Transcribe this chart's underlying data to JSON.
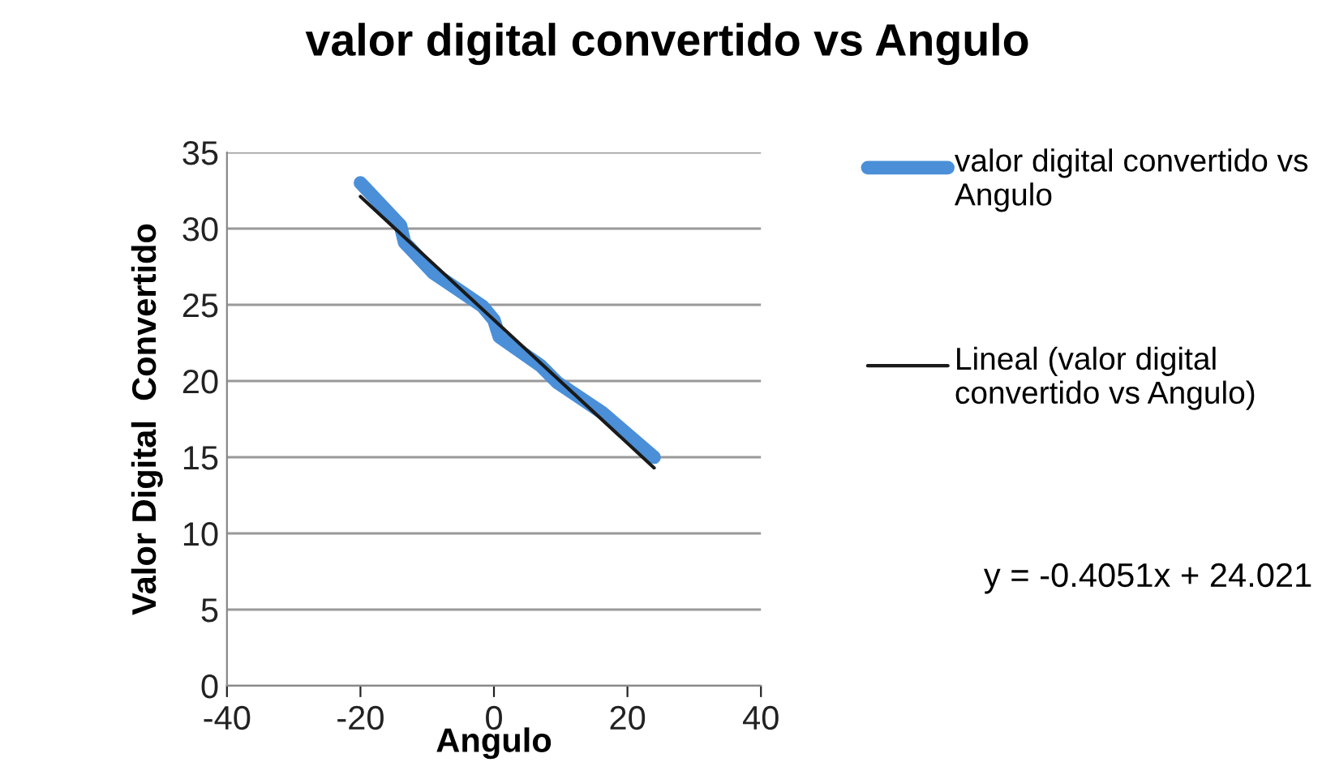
{
  "chart_data": {
    "type": "line",
    "title": "valor digital convertido vs Angulo",
    "xlabel": "Angulo",
    "ylabel": "Valor Digital  Convertido",
    "series": [
      {
        "name": "valor digital convertido vs Angulo",
        "color": "#4a8fd8",
        "x": [
          -20.0,
          -14.0,
          -13.4,
          -9.1,
          -5.4,
          -1.7,
          0,
          0.8,
          7.0,
          9.5,
          16.3,
          24.0
        ],
        "values": [
          33.0,
          30.2,
          29.1,
          27.1,
          26.0,
          24.9,
          24.0,
          22.9,
          21.0,
          19.9,
          17.9,
          15.0
        ]
      },
      {
        "name": "Lineal (valor digital convertido vs Angulo)",
        "color": "#1a1a1a",
        "x": [
          -20,
          24
        ],
        "values": [
          32.1,
          14.3
        ]
      }
    ],
    "xlim": [
      -40,
      40
    ],
    "xticks": [
      -40,
      -20,
      0,
      20,
      40
    ],
    "ylim": [
      0,
      35
    ],
    "yticks": [
      0,
      5,
      10,
      15,
      20,
      25,
      30,
      35
    ],
    "grid": "y",
    "legend": "right",
    "marker": "none",
    "annotations": [
      "y = -0.4051x + 24.021"
    ]
  }
}
